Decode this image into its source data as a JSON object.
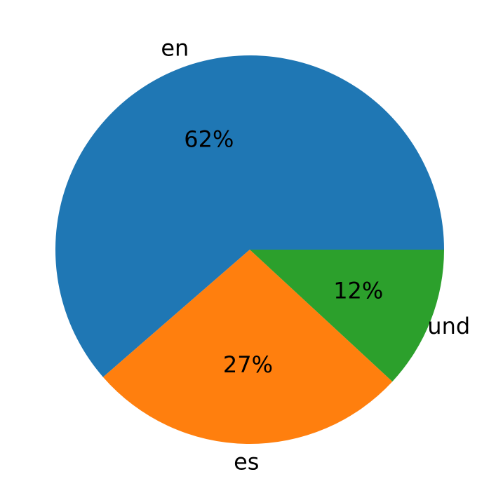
{
  "chart_data": {
    "type": "pie",
    "categories": [
      "en",
      "es",
      "und"
    ],
    "values": [
      62,
      27,
      12
    ],
    "value_labels": [
      "62%",
      "27%",
      "12%"
    ],
    "colors": [
      "#1f77b4",
      "#ff7f0e",
      "#2ca02c"
    ],
    "start_angle": 0,
    "direction": "counterclockwise"
  }
}
